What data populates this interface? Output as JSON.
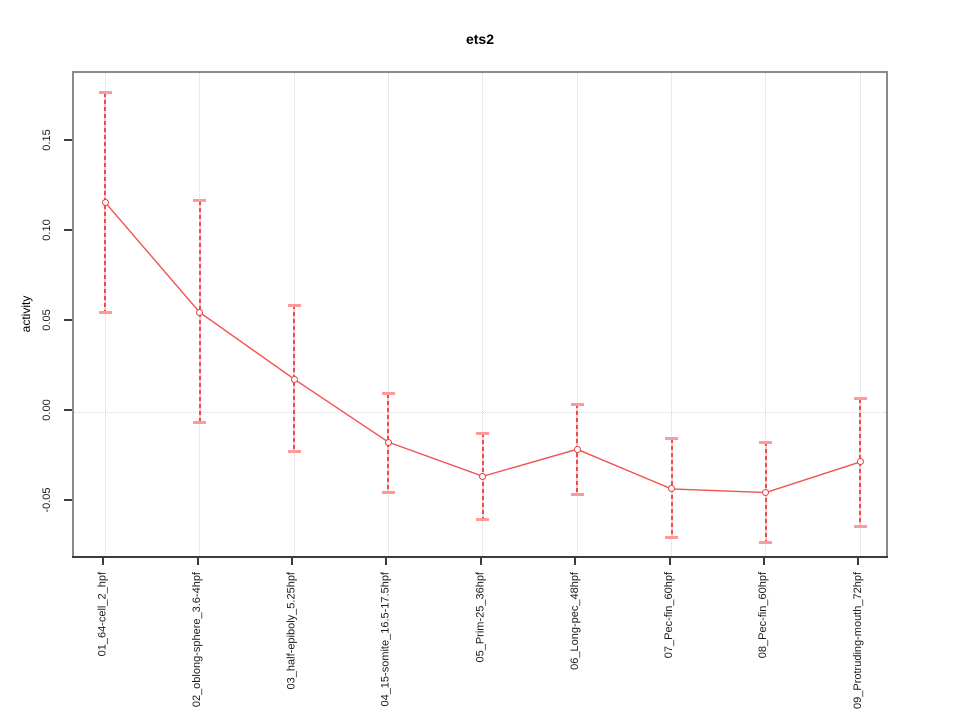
{
  "chart_data": {
    "type": "line",
    "title": "ets2",
    "xlabel": "",
    "ylabel": "activity",
    "categories": [
      "01_64-cell_2_hpf",
      "02_oblong-sphere_3.6-4hpf",
      "03_half-epiboly_5.25hpf",
      "04_15-somite_16.5-17.5hpf",
      "05_Prim-25_36hpf",
      "06_Long-pec_48hpf",
      "07_Pec-fin_60hpf",
      "08_Pec-fin_60hpf",
      "09_Protruding-mouth_72hpf"
    ],
    "series": [
      {
        "name": "activity",
        "values": [
          0.116,
          0.055,
          0.018,
          -0.017,
          -0.036,
          -0.021,
          -0.043,
          -0.045,
          -0.028
        ],
        "error_low": [
          0.055,
          -0.006,
          -0.022,
          -0.045,
          -0.06,
          -0.046,
          -0.07,
          -0.073,
          -0.064
        ],
        "error_high": [
          0.177,
          0.117,
          0.059,
          0.01,
          -0.012,
          0.004,
          -0.015,
          -0.017,
          0.007
        ]
      }
    ],
    "yticks": [
      -0.05,
      0.0,
      0.05,
      0.1,
      0.15
    ],
    "ytick_labels": [
      "-0.05",
      "0.00",
      "0.05",
      "0.10",
      "0.15"
    ],
    "ylim": [
      -0.082,
      0.188
    ],
    "grid": "dotted vertical gridline at each category; dotted horizontal line at y=0",
    "legend": "none",
    "colors": {
      "series_line": "#f25252",
      "error_bar_dash": "#ee4c4c",
      "error_bar_cap": "#ff9a9a",
      "marker_stroke": "#ee4444",
      "grid_line": "#d8d8d8",
      "plot_border": "#8a8a8a",
      "axis_line": "#3c3c3c",
      "text": "#000000"
    }
  }
}
